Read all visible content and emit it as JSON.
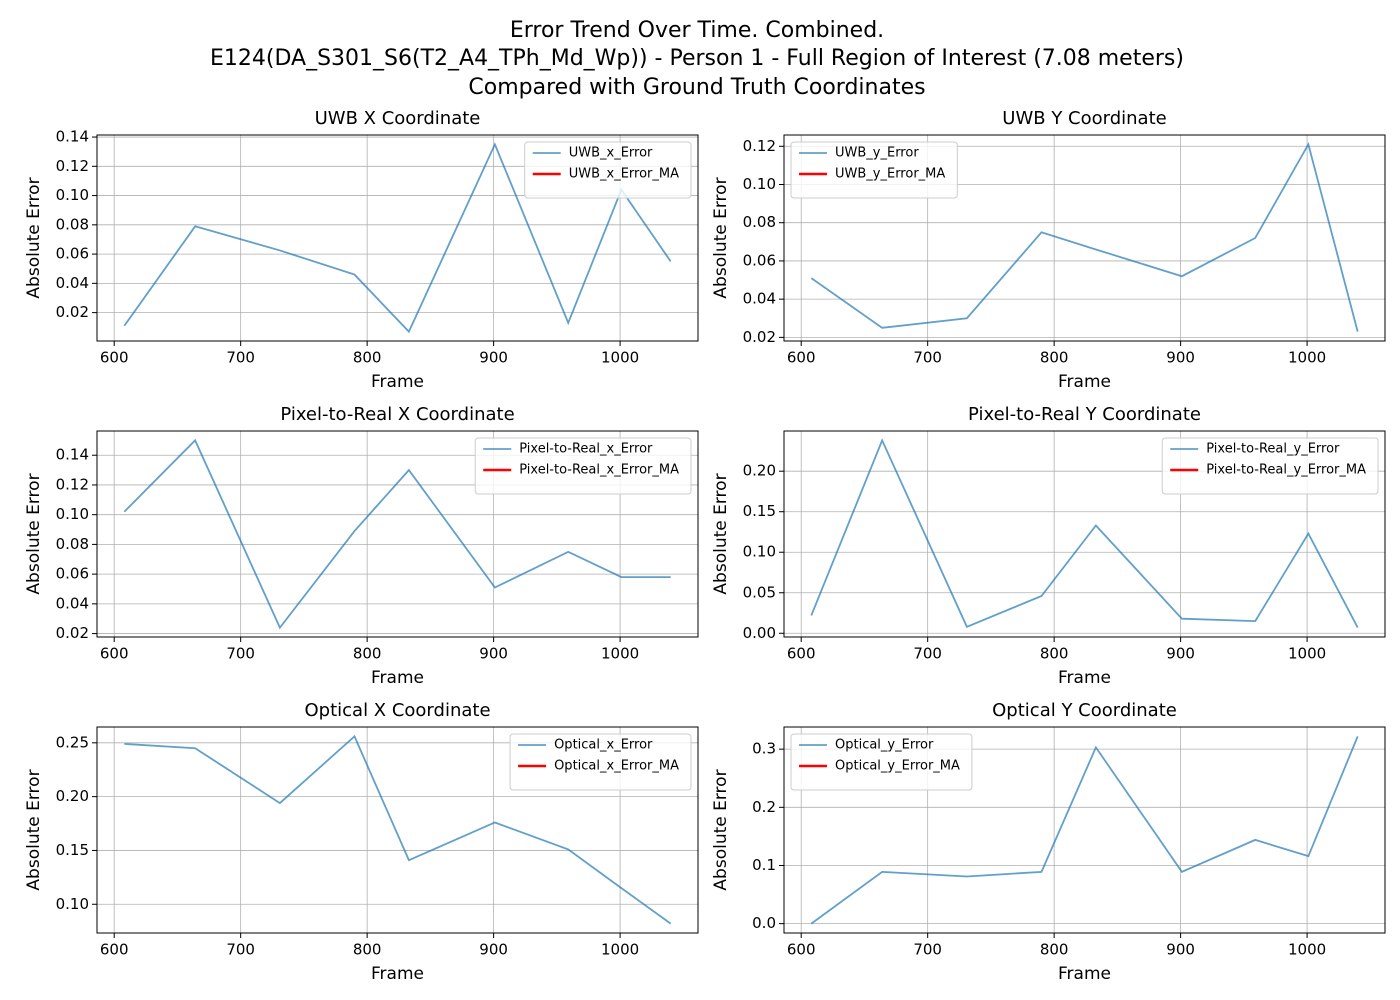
{
  "title": [
    "Error Trend Over Time. Combined.",
    "E124(DA_S301_S6(T2_A4_TPh_Md_Wp)) - Person 1 - Full Region of Interest (7.08 meters)",
    "Compared with Ground Truth Coordinates"
  ],
  "chart_data": [
    {
      "type": "line",
      "title": "UWB X Coordinate",
      "xlabel": "Frame",
      "ylabel": "Absolute Error",
      "grid": true,
      "legend": "upper right",
      "x": [
        608,
        664,
        731,
        790,
        833,
        901,
        959,
        1001,
        1040
      ],
      "series": [
        {
          "name": "UWB_x_Error",
          "color": "#1f77b4",
          "alpha": 0.7,
          "values": [
            0.011,
            0.079,
            0.0625,
            0.046,
            0.007,
            0.135,
            0.013,
            0.104,
            0.055
          ]
        },
        {
          "name": "UWB_x_Error_MA",
          "color": "#ff0000",
          "values": [
            null,
            null,
            null,
            null,
            null,
            null,
            null,
            null,
            null
          ]
        }
      ],
      "xlim": [
        586.4,
        1061.6
      ],
      "xticks": [
        600,
        700,
        800,
        900,
        1000
      ],
      "ylim": [
        0.0006,
        0.1414
      ],
      "yticks": [
        0.02,
        0.04,
        0.06,
        0.08,
        {
          "value": 0.1,
          "label": "0.10"
        },
        0.12,
        0.14
      ]
    },
    {
      "type": "line",
      "title": "UWB Y Coordinate",
      "xlabel": "Frame",
      "ylabel": "Absolute Error",
      "grid": true,
      "legend": "upper left",
      "x": [
        608,
        664,
        731,
        790,
        833,
        901,
        959,
        1001,
        1040
      ],
      "series": [
        {
          "name": "UWB_y_Error",
          "color": "#1f77b4",
          "alpha": 0.7,
          "values": [
            0.051,
            0.025,
            0.03,
            0.075,
            0.066,
            0.052,
            0.072,
            0.121,
            0.023
          ]
        },
        {
          "name": "UWB_y_Error_MA",
          "color": "#ff0000",
          "values": [
            null,
            null,
            null,
            null,
            null,
            null,
            null,
            null,
            null
          ]
        }
      ],
      "xlim": [
        586.4,
        1061.6
      ],
      "xticks": [
        600,
        700,
        800,
        900,
        1000
      ],
      "ylim": [
        0.0181,
        0.1259
      ],
      "yticks": [
        0.02,
        0.04,
        0.06,
        0.08,
        {
          "value": 0.1,
          "label": "0.10"
        },
        0.12
      ]
    },
    {
      "type": "line",
      "title": "Pixel-to-Real X Coordinate",
      "xlabel": "Frame",
      "ylabel": "Absolute Error",
      "grid": true,
      "legend": "upper right",
      "x": [
        608,
        664,
        731,
        790,
        833,
        901,
        959,
        1001,
        1040
      ],
      "series": [
        {
          "name": "Pixel-to-Real_x_Error",
          "color": "#1f77b4",
          "alpha": 0.7,
          "values": [
            0.102,
            0.15,
            0.024,
            0.089,
            0.13,
            0.051,
            0.075,
            0.058,
            0.058
          ]
        },
        {
          "name": "Pixel-to-Real_x_Error_MA",
          "color": "#ff0000",
          "values": [
            null,
            null,
            null,
            null,
            null,
            null,
            null,
            null,
            null
          ]
        }
      ],
      "xlim": [
        586.4,
        1061.6
      ],
      "xticks": [
        600,
        700,
        800,
        900,
        1000
      ],
      "ylim": [
        0.0177,
        0.1563
      ],
      "yticks": [
        0.02,
        0.04,
        0.06,
        0.08,
        {
          "value": 0.1,
          "label": "0.10"
        },
        0.12,
        0.14
      ]
    },
    {
      "type": "line",
      "title": "Pixel-to-Real Y Coordinate",
      "xlabel": "Frame",
      "ylabel": "Absolute Error",
      "grid": true,
      "legend": "upper right",
      "x": [
        608,
        664,
        731,
        790,
        833,
        901,
        959,
        1001,
        1040
      ],
      "series": [
        {
          "name": "Pixel-to-Real_y_Error",
          "color": "#1f77b4",
          "alpha": 0.7,
          "values": [
            0.022,
            0.238,
            0.008,
            0.046,
            0.133,
            0.018,
            0.015,
            0.123,
            0.007
          ]
        },
        {
          "name": "Pixel-to-Real_y_Error_MA",
          "color": "#ff0000",
          "values": [
            null,
            null,
            null,
            null,
            null,
            null,
            null,
            null,
            null
          ]
        }
      ],
      "xlim": [
        586.4,
        1061.6
      ],
      "xticks": [
        600,
        700,
        800,
        900,
        1000
      ],
      "ylim": [
        -0.0046,
        0.2496
      ],
      "yticks": [
        {
          "value": 0,
          "label": "0.00"
        },
        0.05,
        {
          "value": 0.1,
          "label": "0.10"
        },
        0.15,
        {
          "value": 0.2,
          "label": "0.20"
        }
      ]
    },
    {
      "type": "line",
      "title": "Optical X Coordinate",
      "xlabel": "Frame",
      "ylabel": "Absolute Error",
      "grid": true,
      "legend": "upper right",
      "x": [
        608,
        664,
        731,
        790,
        833,
        901,
        959,
        1001,
        1040
      ],
      "series": [
        {
          "name": "Optical_x_Error",
          "color": "#1f77b4",
          "alpha": 0.7,
          "values": [
            0.249,
            0.245,
            0.194,
            0.256,
            0.141,
            0.176,
            0.151,
            0.115,
            0.082
          ]
        },
        {
          "name": "Optical_x_Error_MA",
          "color": "#ff0000",
          "values": [
            null,
            null,
            null,
            null,
            null,
            null,
            null,
            null,
            null
          ]
        }
      ],
      "xlim": [
        586.4,
        1061.6
      ],
      "xticks": [
        600,
        700,
        800,
        900,
        1000
      ],
      "ylim": [
        0.0733,
        0.2647
      ],
      "yticks": [
        {
          "value": 0.1,
          "label": "0.10"
        },
        0.15,
        {
          "value": 0.2,
          "label": "0.20"
        },
        0.25
      ]
    },
    {
      "type": "line",
      "title": "Optical Y Coordinate",
      "xlabel": "Frame",
      "ylabel": "Absolute Error",
      "grid": true,
      "legend": "upper left",
      "x": [
        608,
        664,
        731,
        790,
        833,
        901,
        959,
        1001,
        1040
      ],
      "series": [
        {
          "name": "Optical_y_Error",
          "color": "#1f77b4",
          "alpha": 0.7,
          "values": [
            0.0,
            0.089,
            0.081,
            0.089,
            0.303,
            0.089,
            0.144,
            0.116,
            0.322
          ]
        },
        {
          "name": "Optical_y_Error_MA",
          "color": "#ff0000",
          "values": [
            null,
            null,
            null,
            null,
            null,
            null,
            null,
            null,
            null
          ]
        }
      ],
      "xlim": [
        586.4,
        1061.6
      ],
      "xticks": [
        600,
        700,
        800,
        900,
        1000
      ],
      "ylim": [
        -0.0161,
        0.3381
      ],
      "yticks": [
        {
          "value": 0,
          "label": "0.0"
        },
        0.1,
        0.2,
        0.3
      ]
    }
  ]
}
